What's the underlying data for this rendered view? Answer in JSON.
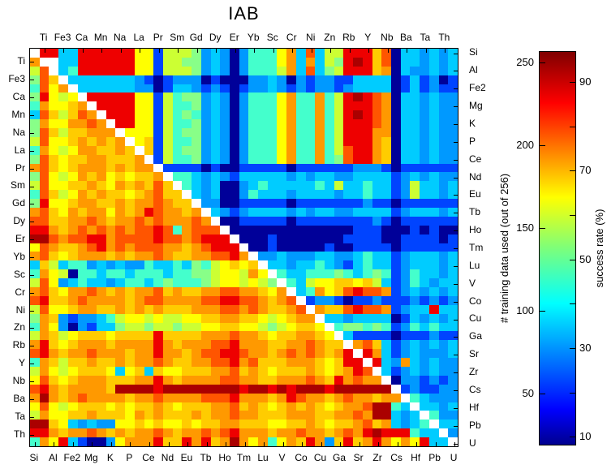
{
  "title": "IAB",
  "chart_data": {
    "type": "heatmap",
    "title": "IAB",
    "matrix_size": 45,
    "elements": [
      "Si",
      "Ti",
      "Al",
      "Fe3",
      "Fe2",
      "Ca",
      "Mg",
      "Mn",
      "K",
      "Na",
      "P",
      "La",
      "Ce",
      "Pr",
      "Nd",
      "Sm",
      "Eu",
      "Gd",
      "Tb",
      "Dy",
      "Ho",
      "Er",
      "Tm",
      "Yb",
      "Lu",
      "Sc",
      "V",
      "Cr",
      "Co",
      "Ni",
      "Cu",
      "Zn",
      "Ga",
      "Rb",
      "Sr",
      "Y",
      "Zr",
      "Nb",
      "Cs",
      "Ba",
      "Hf",
      "Ta",
      "Pb",
      "Th",
      "U"
    ],
    "axis_labels": {
      "top": [
        "Ti",
        "Fe3",
        "Ca",
        "Mn",
        "Na",
        "La",
        "Pr",
        "Sm",
        "Gd",
        "Dy",
        "Er",
        "Yb",
        "Sc",
        "Cr",
        "Ni",
        "Zn",
        "Rb",
        "Y",
        "Nb",
        "Ba",
        "Ta",
        "Th"
      ],
      "left": [
        "Ti",
        "Fe3",
        "Ca",
        "Mn",
        "Na",
        "La",
        "Pr",
        "Sm",
        "Gd",
        "Dy",
        "Er",
        "Yb",
        "Sc",
        "Cr",
        "Ni",
        "Zn",
        "Rb",
        "Y",
        "Nb",
        "Ba",
        "Ta",
        "Th"
      ],
      "right": [
        "Si",
        "Al",
        "Fe2",
        "Mg",
        "K",
        "P",
        "Ce",
        "Nd",
        "Eu",
        "Tb",
        "Ho",
        "Tm",
        "Lu",
        "V",
        "Co",
        "Cu",
        "Ga",
        "Sr",
        "Zr",
        "Cs",
        "Hf",
        "Pb",
        "U"
      ],
      "bottom": [
        "Si",
        "Al",
        "Fe2",
        "Mg",
        "K",
        "P",
        "Ce",
        "Nd",
        "Eu",
        "Tb",
        "Ho",
        "Tm",
        "Lu",
        "V",
        "Co",
        "Cu",
        "Ga",
        "Sr",
        "Zr",
        "Cs",
        "Hf",
        "Pb",
        "U"
      ]
    },
    "palette": {
      "0": "#000099",
      "1": "#0044ff",
      "2": "#0099ff",
      "3": "#00ccff",
      "4": "#44ffcc",
      "5": "#88ff88",
      "6": "#ccff33",
      "7": "#ffff00",
      "8": "#ffcc00",
      "9": "#ff9900",
      "A": "#ff5500",
      "B": "#ee0000",
      "C": "#aa0000",
      "W": "#ffffff"
    },
    "diagonal": "white",
    "rows": [
      "WBB33BBBBBB771666523202444793A366BBB8A0332323",
      "9WW33BBBBBB7716655232024447939365BCB8A0332323",
      "6AW34BBBBBB771666523202444693A356BBB890322323",
      "5A8W33333332101222010002232021221133330131201",
      "4A79W3333332201332121012232121221233330131211",
      "5B767WBBBBB7716455232024447944946BCBA90332322",
      "497789WBBBB7716445232024447944946BBBA90332322",
      "3A868A9WBBB7716454232024447944946BCBA90332322",
      "597799A9WBB7716445232024447944946BBBA90332322",
      "5A8688999W77716455232024447944946BBB990332322",
      "6A77898989W7816445232024447944946BBB980332322",
      "49767998898W816455232024447944946ABB980332322",
      "5A8788998889W16445232024447944945ABB980332322",
      "9A87899989899W1111010011111011111122210111111",
      "5A767989787889W443232133333232332233331232322",
      "6A77889879898A8W43230023433333436334331263323",
      "4A86798988789A88W3230024333233332334331263323",
      "5B77899889899A988W220011111011111112110111111",
      "9A8798997989BA9989W32123333232332233331233323",
      "AA8899A9899A9A999A9W0011111011111111210111111",
      "BB989A9A9A9AABA49AAAW000000000000011100010100",
      "CCA9AABB9AAAABAA9ABBBW00010000000111100111101",
      "7A9889AB9A9AAA9989ABBBW0010000010011110111111",
      "9A87899989899A98899AAB9W223222332234331233323",
      "386344232322433435467878W33233432134331233323",
      "4976044344344434455677697W4334445434541243323",
      "6A723433234434544456776765W436778878631243233",
      "9A8799A989899A898899AA99879W34978ABAA91232323",
      "AB889A999989AA9999AABBAA989AW1221011211121212",
      "6A778998898989888999AA9A9889AW988ABAA91233B33",
      "598212234677676677889988767899W33233330132323",
      "4972021335665665667788776567887W4554541243433",
      "6986788878888B8888999A9987889987W311110111211",
      "9B87899989999B98999AAB9998899A988W9A831232323",
      "AB9899A999899B9989AABBA9989A9A989BWB931232223",
      "4986889889899A98899AAB9A888999878BBWB32932322",
      "697678887378387788899A898788898789BAW31232322",
      "7A87899988899B989999AA9988999A98B9A99W0221212",
      "AB9899998CCCCBCCCCCCCCBCCBCBCCCBCCCCCCW121122",
      "9C989A9999899A9999AAAB99989BA9989A99899W43222",
      "7A7678887878898788899A8987898987899ACC43W3323",
      "697788988879898889899A998889998899A9CC323W422",
      "CC873232277878778788998887788987889A893234W33",
      "BB9899A989899A9899A9AB999899A9989A9BCBBB433W2",
      "497B310027999B88B9B89C9794798B928B89B9797B33W"
    ],
    "colorbar": {
      "gradient": "jet",
      "left_axis": {
        "label": "# training data used (out of 256)",
        "tick_labels": [
          "250",
          "200",
          "150",
          "100",
          "50"
        ]
      },
      "right_axis": {
        "label": "success rate (%)",
        "tick_labels": [
          "90",
          "70",
          "50",
          "30",
          "10"
        ],
        "minor_ticks": [
          "80",
          "60",
          "40",
          "20"
        ]
      }
    }
  }
}
